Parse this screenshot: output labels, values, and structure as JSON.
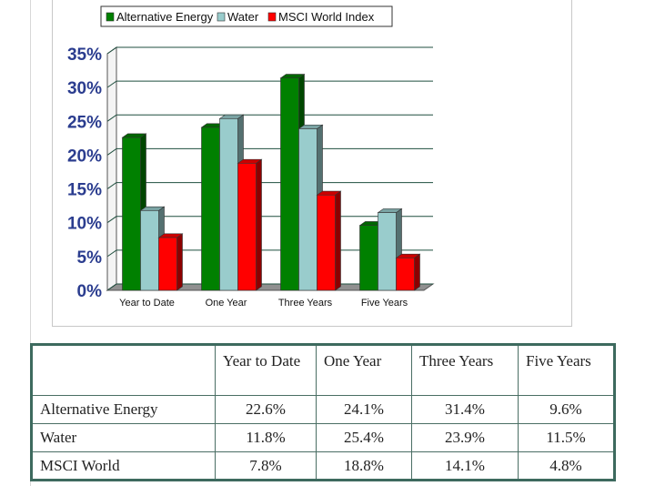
{
  "chart_data": {
    "type": "bar",
    "categories": [
      "Year to Date",
      "One Year",
      "Three Years",
      "Five Years"
    ],
    "series": [
      {
        "name": "Alternative Energy",
        "values": [
          22.6,
          24.1,
          31.4,
          9.6
        ],
        "color": "#008000"
      },
      {
        "name": "Water",
        "values": [
          11.8,
          25.4,
          23.9,
          11.5
        ],
        "color": "#99cccc"
      },
      {
        "name": "MSCI World Index",
        "values": [
          7.8,
          18.8,
          14.1,
          4.8
        ],
        "color": "#ff0000"
      }
    ],
    "yticks": [
      "0%",
      "5%",
      "10%",
      "15%",
      "20%",
      "25%",
      "30%",
      "35%"
    ],
    "ylim": [
      0,
      35
    ],
    "grid": true,
    "legend": "top"
  },
  "table": {
    "headers": [
      "",
      "Year to Date",
      "One Year",
      "Three Years",
      "Five Years"
    ],
    "rows": [
      {
        "label": "Alternative Energy",
        "values": [
          "22.6%",
          "24.1%",
          "31.4%",
          "9.6%"
        ]
      },
      {
        "label": "Water",
        "values": [
          "11.8%",
          "25.4%",
          "23.9%",
          "11.5%"
        ]
      },
      {
        "label": "MSCI World",
        "values": [
          "7.8%",
          "18.8%",
          "14.1%",
          "4.8%"
        ]
      }
    ]
  }
}
